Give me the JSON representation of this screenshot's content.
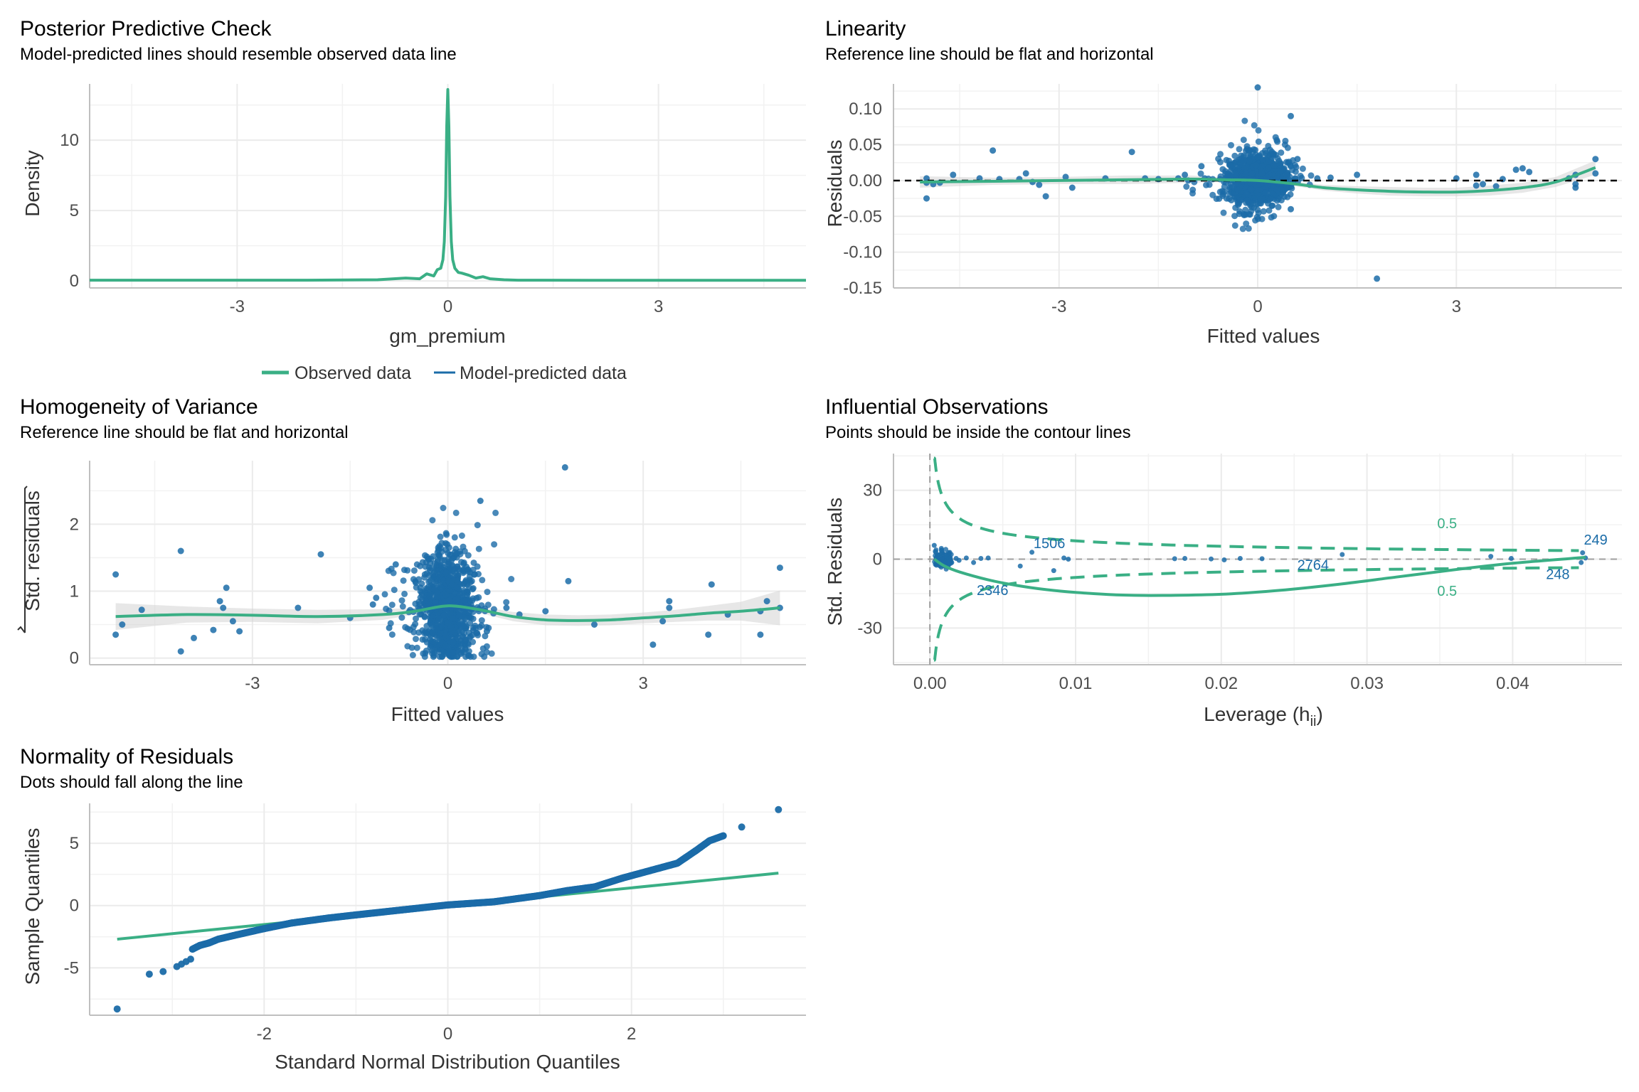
{
  "colors": {
    "green": "#3aaf85",
    "blue": "#1b6ca8",
    "ribbon": "#d3d3d3",
    "grid": "#ebebeb",
    "axis": "#bfbfbf"
  },
  "chart_data": [
    {
      "id": "ppc",
      "type": "line",
      "title": "Posterior Predictive Check",
      "subtitle": "Model-predicted lines should resemble observed data line",
      "xlabel": "gm_premium",
      "ylabel": "Density",
      "xlim": [
        -5.1,
        5.1
      ],
      "ylim": [
        -0.5,
        14
      ],
      "xticks": [
        -3,
        0,
        3
      ],
      "yticks": [
        0,
        5,
        10
      ],
      "legend": {
        "position": "bottom",
        "entries": [
          "Observed data",
          "Model-predicted data"
        ]
      },
      "series": [
        {
          "name": "Observed data",
          "color": "green",
          "x": [
            -5.1,
            -2,
            -1,
            -0.6,
            -0.4,
            -0.3,
            -0.2,
            -0.15,
            -0.1,
            -0.07,
            -0.05,
            -0.03,
            -0.015,
            0,
            0.015,
            0.03,
            0.05,
            0.07,
            0.1,
            0.15,
            0.2,
            0.3,
            0.4,
            0.5,
            0.6,
            0.8,
            1,
            2,
            5.1
          ],
          "y": [
            0.05,
            0.05,
            0.08,
            0.2,
            0.15,
            0.5,
            0.35,
            0.8,
            0.9,
            1.5,
            2.8,
            6,
            11,
            13.6,
            11,
            6,
            2.8,
            1.5,
            0.9,
            0.6,
            0.55,
            0.4,
            0.2,
            0.3,
            0.15,
            0.08,
            0.05,
            0.04,
            0.04
          ]
        },
        {
          "name": "Model-predicted data",
          "color": "blue",
          "x": [],
          "y": []
        }
      ]
    },
    {
      "id": "lin",
      "type": "scatter",
      "title": "Linearity",
      "subtitle": "Reference line should be flat and horizontal",
      "xlabel": "Fitted values",
      "ylabel": "Residuals",
      "xlim": [
        -5.5,
        5.5
      ],
      "ylim": [
        -0.15,
        0.135
      ],
      "xticks": [
        -3,
        0,
        3
      ],
      "yticks": [
        0.1,
        0.05,
        0.0,
        -0.05,
        -0.1,
        -0.15
      ],
      "ytick_labels": [
        "0.10",
        "0.05",
        "0.00",
        "-0.05",
        "-0.10",
        "-0.15"
      ],
      "reference_y": 0,
      "cluster": {
        "x_center": 0,
        "x_sd": 0.22,
        "y_sd": 0.018,
        "n": 900
      },
      "points": [
        [
          -5,
          0.003
        ],
        [
          -5,
          -0.003
        ],
        [
          -5,
          -0.025
        ],
        [
          -4.9,
          -0.005
        ],
        [
          -4.8,
          -0.003
        ],
        [
          -4.6,
          0.008
        ],
        [
          -4.2,
          0.003
        ],
        [
          -4,
          0.042
        ],
        [
          -3.9,
          0.002
        ],
        [
          -3.6,
          0.002
        ],
        [
          -3.5,
          0.01
        ],
        [
          -3.4,
          -0.002
        ],
        [
          -3.3,
          -0.006
        ],
        [
          -3.2,
          -0.022
        ],
        [
          -2.9,
          0.005
        ],
        [
          -2.8,
          -0.01
        ],
        [
          -2.3,
          0.003
        ],
        [
          -1.9,
          0.04
        ],
        [
          -1.7,
          0.003
        ],
        [
          -1.5,
          0.002
        ],
        [
          -1.2,
          0.003
        ],
        [
          -1.1,
          0.008
        ],
        [
          -1.05,
          0.0
        ],
        [
          -0.85,
          0.02
        ],
        [
          -0.8,
          0.003
        ],
        [
          0,
          0.13
        ],
        [
          0.5,
          0.02
        ],
        [
          0.5,
          0.09
        ],
        [
          0.5,
          -0.04
        ],
        [
          0.6,
          0.03
        ],
        [
          0.9,
          0.003
        ],
        [
          1.1,
          0.004
        ],
        [
          1.5,
          0.008
        ],
        [
          1.8,
          -0.137
        ],
        [
          3,
          0.003
        ],
        [
          3.3,
          0.008
        ],
        [
          3.4,
          -0.005
        ],
        [
          3.6,
          -0.008
        ],
        [
          3.3,
          -0.007
        ],
        [
          3.7,
          0.002
        ],
        [
          3.9,
          0.015
        ],
        [
          4,
          0.017
        ],
        [
          4.1,
          0.012
        ],
        [
          4.7,
          0.003
        ],
        [
          4.8,
          0.008
        ],
        [
          4.8,
          -0.005
        ],
        [
          4.8,
          -0.01
        ],
        [
          5.1,
          0.03
        ],
        [
          5.1,
          0.01
        ]
      ],
      "fit": {
        "color": "green",
        "x": [
          -5.1,
          -4,
          -3,
          -2,
          -1,
          -0.5,
          0,
          0.5,
          1,
          1.5,
          2,
          2.5,
          3,
          3.5,
          4,
          4.5,
          5.1
        ],
        "y": [
          -0.002,
          -0.001,
          0.0,
          0.001,
          0.002,
          0.001,
          0.0,
          -0.004,
          -0.01,
          -0.013,
          -0.015,
          -0.016,
          -0.016,
          -0.014,
          -0.01,
          -0.002,
          0.018
        ],
        "se": [
          0.008,
          0.005,
          0.005,
          0.006,
          0.005,
          0.003,
          0.002,
          0.003,
          0.004,
          0.005,
          0.006,
          0.006,
          0.006,
          0.007,
          0.007,
          0.007,
          0.01
        ]
      }
    },
    {
      "id": "hom",
      "type": "scatter",
      "title": "Homogeneity of Variance",
      "subtitle": "Reference line should be flat and horizontal",
      "xlabel": "Fitted values",
      "ylabel": "Std. residuals",
      "ylabel_sqrt": true,
      "xlim": [
        -5.5,
        5.5
      ],
      "ylim": [
        -0.1,
        2.95
      ],
      "xticks": [
        -3,
        0,
        3
      ],
      "yticks": [
        0,
        1,
        2
      ],
      "cluster": {
        "x_center": 0,
        "x_sd": 0.22,
        "y_mean": 0.75,
        "y_sd": 0.45,
        "n": 900
      },
      "points": [
        [
          -5.1,
          1.25
        ],
        [
          -5.1,
          0.35
        ],
        [
          -5.0,
          0.5
        ],
        [
          -4.7,
          0.72
        ],
        [
          -4.1,
          1.6
        ],
        [
          -4.1,
          0.1
        ],
        [
          -3.9,
          0.3
        ],
        [
          -3.6,
          0.42
        ],
        [
          -3.5,
          0.85
        ],
        [
          -3.45,
          0.75
        ],
        [
          -3.4,
          1.05
        ],
        [
          -3.3,
          0.55
        ],
        [
          -3.2,
          0.4
        ],
        [
          -2.3,
          0.75
        ],
        [
          -1.95,
          1.55
        ],
        [
          -1.5,
          0.6
        ],
        [
          -1.2,
          1.05
        ],
        [
          -1.15,
          0.8
        ],
        [
          -1.1,
          0.9
        ],
        [
          -0.9,
          0.45
        ],
        [
          -0.8,
          1.4
        ],
        [
          0.5,
          2.35
        ],
        [
          0.6,
          0.4
        ],
        [
          0.9,
          0.75
        ],
        [
          1.1,
          0.65
        ],
        [
          1.5,
          0.7
        ],
        [
          1.8,
          2.85
        ],
        [
          1.85,
          1.15
        ],
        [
          2.25,
          0.5
        ],
        [
          3.15,
          0.2
        ],
        [
          3.3,
          0.55
        ],
        [
          3.4,
          0.85
        ],
        [
          3.4,
          0.75
        ],
        [
          4,
          0.35
        ],
        [
          4.05,
          1.1
        ],
        [
          4.3,
          0.65
        ],
        [
          4.8,
          0.7
        ],
        [
          4.8,
          0.35
        ],
        [
          4.9,
          0.85
        ],
        [
          5.1,
          1.35
        ],
        [
          5.1,
          0.75
        ]
      ],
      "fit": {
        "color": "green",
        "x": [
          -5.1,
          -4,
          -3,
          -2,
          -1,
          -0.5,
          0,
          0.5,
          1,
          1.5,
          2,
          2.5,
          3,
          3.5,
          4,
          4.5,
          5.1
        ],
        "y": [
          0.62,
          0.65,
          0.64,
          0.62,
          0.65,
          0.7,
          0.78,
          0.72,
          0.62,
          0.57,
          0.56,
          0.57,
          0.6,
          0.63,
          0.67,
          0.7,
          0.75
        ],
        "se": [
          0.2,
          0.12,
          0.1,
          0.1,
          0.08,
          0.05,
          0.04,
          0.05,
          0.07,
          0.08,
          0.08,
          0.08,
          0.08,
          0.09,
          0.11,
          0.14,
          0.26
        ]
      }
    },
    {
      "id": "infl",
      "type": "scatter",
      "title": "Influential Observations",
      "subtitle": "Points should be inside the contour lines",
      "xlabel": "Leverage (h",
      "xlabel_sub": "ii",
      "xlabel_end": ")",
      "ylabel": "Std. Residuals",
      "xlim": [
        -0.0025,
        0.0475
      ],
      "ylim": [
        -46,
        46
      ],
      "xticks": [
        0.0,
        0.01,
        0.02,
        0.03,
        0.04
      ],
      "xtick_labels": [
        "0.00",
        "0.01",
        "0.02",
        "0.03",
        "0.04"
      ],
      "yticks": [
        30,
        0,
        -30
      ],
      "cutoff_label": "0.5",
      "point_labels": [
        {
          "text": "1506",
          "x": 0.0082,
          "y": 7
        },
        {
          "text": "2346",
          "x": 0.0043,
          "y": -13.5
        },
        {
          "text": "2764",
          "x": 0.0263,
          "y": -2.5
        },
        {
          "text": "249",
          "x": 0.0457,
          "y": 8.5
        },
        {
          "text": "248",
          "x": 0.0431,
          "y": -6.5
        }
      ],
      "points": [
        [
          0.0003,
          6
        ],
        [
          0.0004,
          3
        ],
        [
          0.0005,
          1
        ],
        [
          0.0006,
          -1
        ],
        [
          0.0007,
          2
        ],
        [
          0.0008,
          4
        ],
        [
          0.001,
          -3
        ],
        [
          0.0012,
          1
        ],
        [
          0.0014,
          0.5
        ],
        [
          0.0015,
          -1.5
        ],
        [
          0.0018,
          0.3
        ],
        [
          0.002,
          -0.5
        ],
        [
          0.0025,
          0.5
        ],
        [
          0.003,
          -1.5
        ],
        [
          0.0035,
          0.3
        ],
        [
          0.004,
          0.5
        ],
        [
          0.007,
          3
        ],
        [
          0.0062,
          -3
        ],
        [
          0.0085,
          -5
        ],
        [
          0.0092,
          0.5
        ],
        [
          0.0095,
          0
        ],
        [
          0.0168,
          0.2
        ],
        [
          0.0175,
          0.3
        ],
        [
          0.0193,
          0.1
        ],
        [
          0.0202,
          -0.3
        ],
        [
          0.0213,
          0.3
        ],
        [
          0.0228,
          0.2
        ],
        [
          0.0283,
          2
        ],
        [
          0.0385,
          1.2
        ],
        [
          0.0399,
          0.3
        ],
        [
          0.0448,
          2.8
        ],
        [
          0.0447,
          -1.5
        ],
        [
          0.045,
          0.5
        ]
      ],
      "fit": {
        "color": "green",
        "x": [
          0.0003,
          0.001,
          0.002,
          0.004,
          0.006,
          0.008,
          0.01,
          0.013,
          0.016,
          0.02,
          0.024,
          0.028,
          0.032,
          0.036,
          0.04,
          0.045
        ],
        "y": [
          0,
          -3,
          -5.5,
          -9,
          -11.5,
          -13.3,
          -14.5,
          -15.6,
          -15.8,
          -15.3,
          -13.6,
          -11,
          -7.8,
          -4.6,
          -1.8,
          0.8
        ]
      }
    },
    {
      "id": "qq",
      "type": "scatter",
      "title": "Normality of Residuals",
      "subtitle": "Dots should fall along the line",
      "xlabel": "Standard Normal Distribution Quantiles",
      "ylabel": "Sample Quantiles",
      "xlim": [
        -3.9,
        3.9
      ],
      "ylim": [
        -8.8,
        8.2
      ],
      "xticks": [
        -2,
        0,
        2
      ],
      "yticks": [
        5,
        0,
        -5
      ],
      "reference_line": {
        "color": "green",
        "x": [
          -3.6,
          3.6
        ],
        "y": [
          -2.7,
          2.6
        ]
      },
      "points": [
        [
          -3.6,
          -8.3
        ],
        [
          -3.25,
          -5.5
        ],
        [
          -3.1,
          -5.3
        ],
        [
          -2.95,
          -4.9
        ],
        [
          -2.9,
          -4.7
        ],
        [
          -2.85,
          -4.5
        ],
        [
          -2.8,
          -4.3
        ],
        [
          -2.78,
          -3.5
        ],
        [
          -2.7,
          -3.2
        ],
        [
          -2.6,
          -3.0
        ],
        [
          -2.5,
          -2.7
        ],
        [
          -2.3,
          -2.35
        ],
        [
          -2.0,
          -1.85
        ],
        [
          -1.7,
          -1.4
        ],
        [
          -1.3,
          -1.0
        ],
        [
          -1.0,
          -0.75
        ],
        [
          -0.5,
          -0.35
        ],
        [
          0,
          0.05
        ],
        [
          0.5,
          0.3
        ],
        [
          1.0,
          0.8
        ],
        [
          1.3,
          1.2
        ],
        [
          1.6,
          1.5
        ],
        [
          1.9,
          2.2
        ],
        [
          2.1,
          2.6
        ],
        [
          2.3,
          3.0
        ],
        [
          2.5,
          3.4
        ],
        [
          2.6,
          3.9
        ],
        [
          2.7,
          4.4
        ],
        [
          2.85,
          5.2
        ],
        [
          3.0,
          5.6
        ],
        [
          3.2,
          6.3
        ],
        [
          3.6,
          7.7
        ]
      ]
    }
  ]
}
